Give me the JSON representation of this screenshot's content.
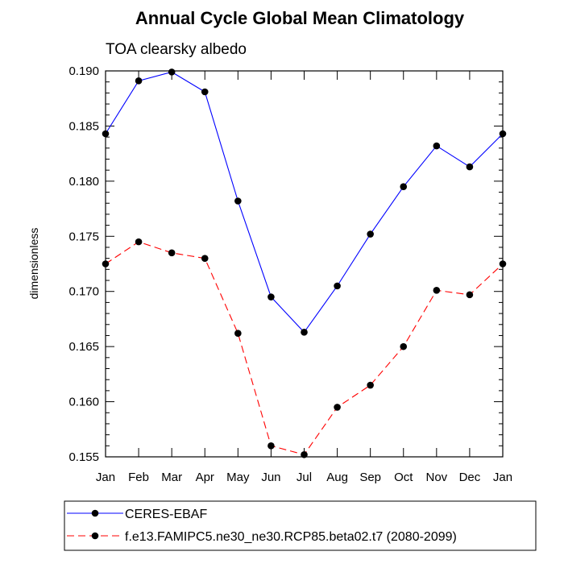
{
  "chart_data": {
    "type": "line",
    "title": "Annual Cycle Global Mean Climatology",
    "subtitle": "TOA clearsky albedo",
    "xlabel": "",
    "ylabel": "dimensionless",
    "categories": [
      "Jan",
      "Feb",
      "Mar",
      "Apr",
      "May",
      "Jun",
      "Jul",
      "Aug",
      "Sep",
      "Oct",
      "Nov",
      "Dec",
      "Jan"
    ],
    "ylim": [
      0.155,
      0.19
    ],
    "yticks": [
      "0.155",
      "0.160",
      "0.165",
      "0.170",
      "0.175",
      "0.180",
      "0.185",
      "0.190"
    ],
    "grid": false,
    "legend_position": "bottom",
    "series": [
      {
        "name": "CERES-EBAF",
        "color": "#0000ff",
        "line_style": "solid",
        "values": [
          0.1843,
          0.1891,
          0.1899,
          0.1881,
          0.1782,
          0.1695,
          0.1663,
          0.1705,
          0.1752,
          0.1795,
          0.1832,
          0.1813,
          0.1843
        ]
      },
      {
        "name": "f.e13.FAMIPC5.ne30_ne30.RCP85.beta02.t7 (2080-2099)",
        "color": "#ff0000",
        "line_style": "dashed",
        "values": [
          0.1725,
          0.1745,
          0.1735,
          0.173,
          0.1662,
          0.156,
          0.1552,
          0.1595,
          0.1615,
          0.165,
          0.1701,
          0.1697,
          0.1725
        ]
      }
    ]
  }
}
